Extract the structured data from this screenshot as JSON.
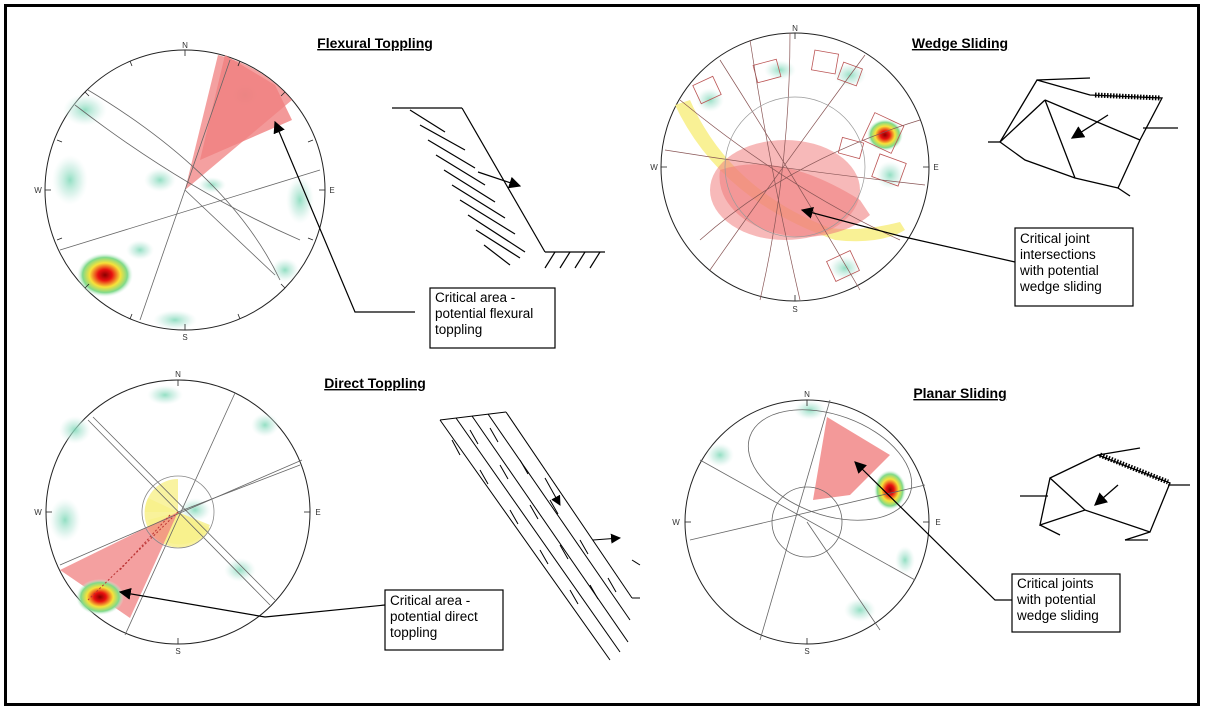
{
  "panels": {
    "flexural": {
      "title": "Flexural Toppling",
      "note": [
        "Critical area -",
        "potential flexural",
        "toppling"
      ]
    },
    "wedge": {
      "title": "Wedge Sliding",
      "note": [
        "Critical joint",
        "intersections",
        "with potential",
        "wedge sliding"
      ]
    },
    "direct": {
      "title": "Direct Toppling",
      "note": [
        "Critical area -",
        "potential direct",
        "toppling"
      ]
    },
    "planar": {
      "title": "Planar Sliding",
      "note": [
        "Critical joints",
        "with potential",
        "wedge sliding"
      ]
    }
  },
  "cardinals": {
    "n": "N",
    "s": "S",
    "e": "E",
    "w": "W"
  },
  "colors": {
    "critical_red": "#f08080",
    "critical_yellow": "#f8f08a",
    "density_green": "#9ee0c8",
    "density_hot": "#e81010"
  },
  "icons": [
    "stereonet",
    "slope-toppling-sketch",
    "slope-blocks-sketch",
    "wedge-block-sketch",
    "planar-block-sketch"
  ]
}
